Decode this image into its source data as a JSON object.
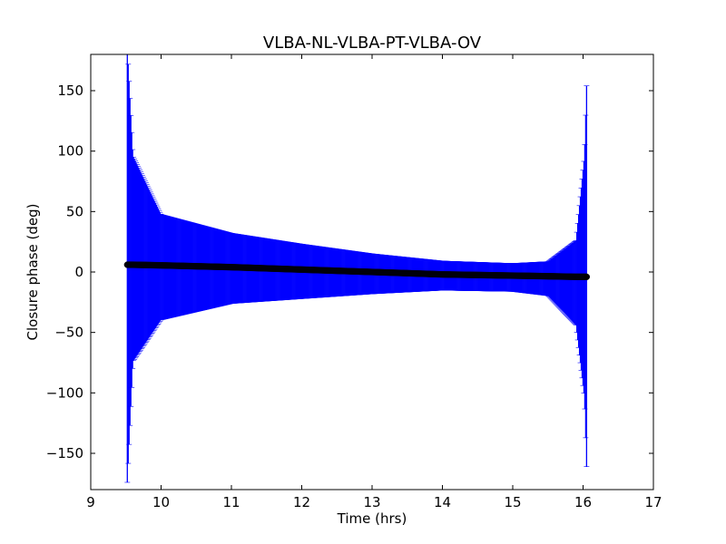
{
  "chart_data": {
    "type": "scatter",
    "title": "VLBA-NL-VLBA-PT-VLBA-OV",
    "xlabel": "Time (hrs)",
    "ylabel": "Closure phase (deg)",
    "xlim": [
      9,
      17
    ],
    "ylim": [
      -180,
      180
    ],
    "xticks": [
      9,
      10,
      11,
      12,
      13,
      14,
      15,
      16,
      17
    ],
    "yticks": [
      -150,
      -100,
      -50,
      0,
      50,
      100,
      150
    ],
    "ytick_labels": [
      "−150",
      "−100",
      "−50",
      "0",
      "50",
      "100",
      "150"
    ],
    "grid": false,
    "legend": "none",
    "colors": {
      "errorbar": "#0000ff",
      "points": "#000000"
    },
    "series": [
      {
        "x_range": [
          9.52,
          16.05
        ],
        "phase_start": 6.0,
        "phase_end": -4.0,
        "sample_points": [
          {
            "x": 9.52,
            "y": 6.0,
            "err_low": 180,
            "err_high": 180
          },
          {
            "x": 9.6,
            "y": 6.0,
            "err_low": 80,
            "err_high": 90
          },
          {
            "x": 10.0,
            "y": 5.5,
            "err_low": 45,
            "err_high": 42
          },
          {
            "x": 11.0,
            "y": 4.0,
            "err_low": 30,
            "err_high": 28
          },
          {
            "x": 12.0,
            "y": 2.0,
            "err_low": 24,
            "err_high": 21
          },
          {
            "x": 13.0,
            "y": 0.0,
            "err_low": 18,
            "err_high": 15
          },
          {
            "x": 14.0,
            "y": -2.0,
            "err_low": 13,
            "err_high": 11
          },
          {
            "x": 15.0,
            "y": -3.0,
            "err_low": 13,
            "err_high": 10
          },
          {
            "x": 15.5,
            "y": -3.5,
            "err_low": 16,
            "err_high": 12
          },
          {
            "x": 15.9,
            "y": -4.0,
            "err_low": 40,
            "err_high": 30
          },
          {
            "x": 16.02,
            "y": -4.0,
            "err_low": 100,
            "err_high": 100
          },
          {
            "x": 16.05,
            "y": -4.0,
            "err_low": 157,
            "err_high": 158
          }
        ]
      }
    ]
  }
}
